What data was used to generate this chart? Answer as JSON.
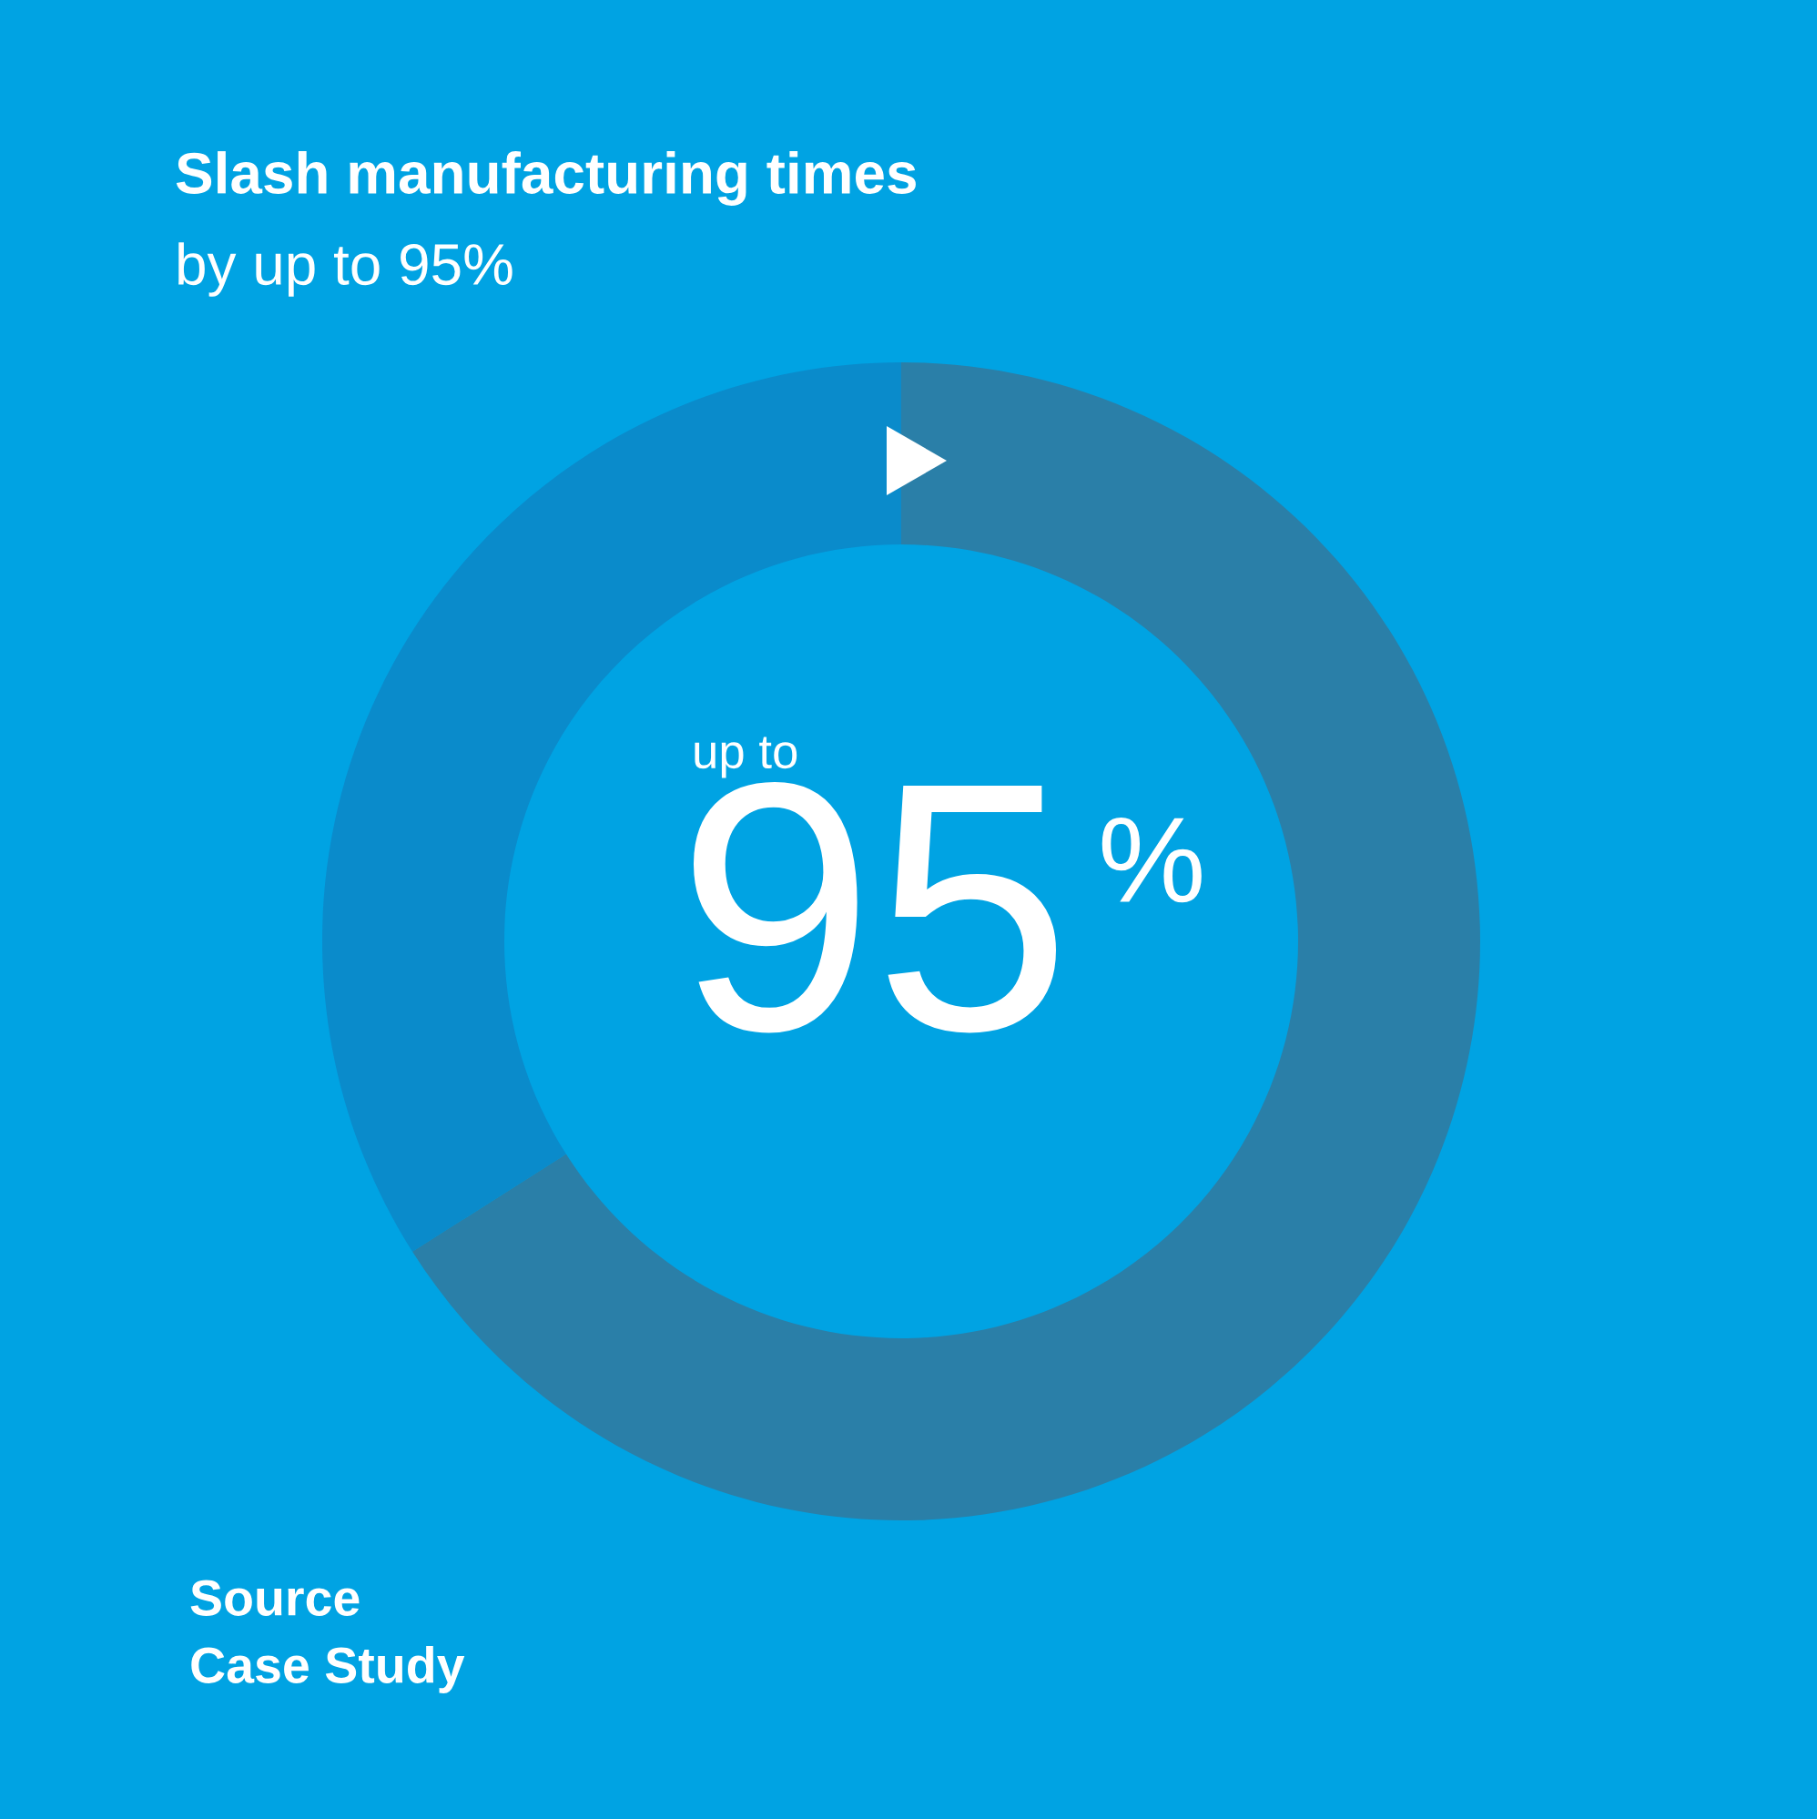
{
  "chart_data": {
    "type": "donut",
    "title": "Slash manufacturing times",
    "subtitle": "by up to 95%",
    "categories": [
      null,
      null
    ],
    "values": [
      66,
      34
    ],
    "colors": [
      "#2a7fa8",
      "#0a8bcb"
    ],
    "annotations": [
      "up to",
      "95",
      "%",
      "Source",
      "Case Study"
    ]
  }
}
